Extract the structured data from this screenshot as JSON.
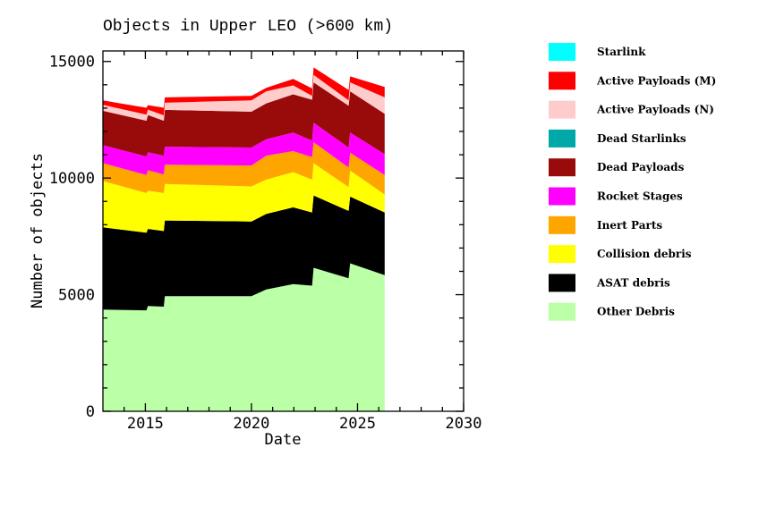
{
  "chart_data": {
    "type": "area",
    "stacked": true,
    "title": "Objects in Upper LEO (>600 km)",
    "xlabel": "Date",
    "ylabel": "Number of objects",
    "xlim": [
      2013.0,
      2030.0
    ],
    "ylim": [
      0,
      15450
    ],
    "xticks": [
      2015,
      2020,
      2025,
      2030
    ],
    "xtick_labels": [
      "2015",
      "2020",
      "2025",
      "2030"
    ],
    "yticks": [
      0,
      5000,
      10000,
      15000
    ],
    "ytick_labels": [
      "0",
      "5000",
      "10000",
      "15000"
    ],
    "grid": false,
    "legend_position": "right",
    "x": [
      2013.0,
      2015.05,
      2015.12,
      2015.87,
      2015.92,
      2020.0,
      2020.7,
      2021.97,
      2022.86,
      2022.93,
      2024.58,
      2024.65,
      2026.28
    ],
    "series": [
      {
        "name": "Other Debris",
        "color": "#bbffa6",
        "values": [
          4360,
          4330,
          4515,
          4485,
          4935,
          4935,
          5220,
          5450,
          5385,
          6155,
          5705,
          6345,
          5835
        ]
      },
      {
        "name": "ASAT debris",
        "color": "#000000",
        "values": [
          3525,
          3325,
          3305,
          3245,
          3245,
          3205,
          3240,
          3295,
          3140,
          3100,
          2885,
          2860,
          2690
        ]
      },
      {
        "name": "Collision debris",
        "color": "#ffff00",
        "values": [
          1985,
          1705,
          1640,
          1630,
          1565,
          1500,
          1475,
          1510,
          1410,
          1385,
          1025,
          1115,
          770
        ]
      },
      {
        "name": "Inert Parts",
        "color": "#ffa500",
        "values": [
          770,
          770,
          875,
          795,
          830,
          900,
          1025,
          900,
          960,
          900,
          835,
          770,
          835
        ]
      },
      {
        "name": "Rocket Stages",
        "color": "#ff00ff",
        "values": [
          770,
          795,
          770,
          805,
          770,
          770,
          705,
          795,
          710,
          830,
          860,
          860,
          895
        ]
      },
      {
        "name": "Dead Payloads",
        "color": "#990b0b",
        "values": [
          1475,
          1535,
          1600,
          1500,
          1580,
          1535,
          1540,
          1640,
          1755,
          1735,
          1795,
          1770,
          1730
        ]
      },
      {
        "name": "Dead Starlinks",
        "color": "#00a8a8",
        "values": [
          0,
          0,
          0,
          0,
          0,
          0,
          0,
          0,
          0,
          0,
          0,
          0,
          0
        ]
      },
      {
        "name": "Active Payloads (N)",
        "color": "#ffcccc",
        "values": [
          255,
          260,
          230,
          230,
          305,
          490,
          515,
          385,
          165,
          320,
          230,
          385,
          705
        ]
      },
      {
        "name": "Active Payloads (M)",
        "color": "#ff0000",
        "values": [
          190,
          295,
          190,
          325,
          230,
          190,
          150,
          280,
          320,
          320,
          445,
          255,
          450
        ]
      },
      {
        "name": "Starlink",
        "color": "#00ffff",
        "values": [
          0,
          0,
          0,
          0,
          0,
          0,
          0,
          0,
          0,
          0,
          0,
          0,
          0
        ]
      }
    ],
    "legend": [
      "Starlink",
      "Active Payloads (M)",
      "Active Payloads (N)",
      "Dead Starlinks",
      "Dead Payloads",
      "Rocket Stages",
      "Inert Parts",
      "Collision debris",
      "ASAT debris",
      "Other Debris"
    ]
  }
}
